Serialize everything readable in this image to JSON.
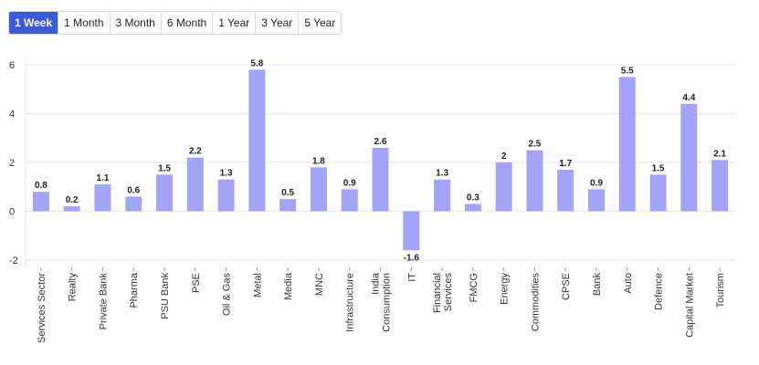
{
  "tabs": [
    {
      "label": "1 Week",
      "active": true
    },
    {
      "label": "1 Month",
      "active": false
    },
    {
      "label": "3 Month",
      "active": false
    },
    {
      "label": "6 Month",
      "active": false
    },
    {
      "label": "1 Year",
      "active": false
    },
    {
      "label": "3 Year",
      "active": false
    },
    {
      "label": "5 Year",
      "active": false
    }
  ],
  "colors": {
    "bar": "#a3a3f7",
    "grid": "#e6e6e6",
    "active_tab": "#3b5bdb"
  },
  "chart_data": {
    "type": "bar",
    "title": "",
    "xlabel": "",
    "ylabel": "",
    "ylim": [
      -2,
      6
    ],
    "yticks": [
      6,
      4,
      2,
      0,
      -2
    ],
    "grid": true,
    "categories": [
      [
        "Services Sector"
      ],
      [
        "Realty"
      ],
      [
        "Private Bank"
      ],
      [
        "Pharma"
      ],
      [
        "PSU Bank"
      ],
      [
        "PSE"
      ],
      [
        "Oil & Gas"
      ],
      [
        "Metal"
      ],
      [
        "Media"
      ],
      [
        "MNC"
      ],
      [
        "Infrastructure"
      ],
      [
        "India",
        "Consumption"
      ],
      [
        "IT"
      ],
      [
        "Financial",
        "Services"
      ],
      [
        "FMCG"
      ],
      [
        "Energy"
      ],
      [
        "Commodities"
      ],
      [
        "CPSE"
      ],
      [
        "Bank"
      ],
      [
        "Auto"
      ],
      [
        "Defence"
      ],
      [
        "Capital Market"
      ],
      [
        "Tourism"
      ]
    ],
    "values": [
      0.8,
      0.2,
      1.1,
      0.6,
      1.5,
      2.2,
      1.3,
      5.8,
      0.5,
      1.8,
      0.9,
      2.6,
      -1.6,
      1.3,
      0.3,
      2,
      2.5,
      1.7,
      0.9,
      5.5,
      1.5,
      4.4,
      2.1
    ],
    "data_labels": [
      "0.8",
      "0.2",
      "1.1",
      "0.6",
      "1.5",
      "2.2",
      "1.3",
      "5.8",
      "0.5",
      "1.8",
      "0.9",
      "2.6",
      "-1.6",
      "1.3",
      "0.3",
      "2",
      "2.5",
      "1.7",
      "0.9",
      "5.5",
      "1.5",
      "4.4",
      "2.1"
    ]
  }
}
